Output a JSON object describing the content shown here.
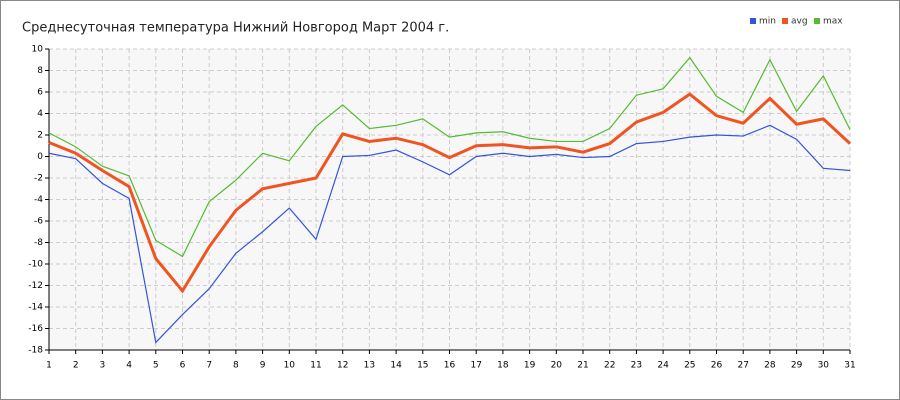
{
  "chart_data": {
    "type": "line",
    "title": "Среднесуточная температура Нижний Новгород  Март 2004 г.",
    "x": [
      1,
      2,
      3,
      4,
      5,
      6,
      7,
      8,
      9,
      10,
      11,
      12,
      13,
      14,
      15,
      16,
      17,
      18,
      19,
      20,
      21,
      22,
      23,
      24,
      25,
      26,
      27,
      28,
      29,
      30,
      31
    ],
    "xlim": [
      1,
      31
    ],
    "xticks": [
      1,
      2,
      3,
      4,
      5,
      6,
      7,
      8,
      9,
      10,
      11,
      12,
      13,
      14,
      15,
      16,
      17,
      18,
      19,
      20,
      21,
      22,
      23,
      24,
      25,
      26,
      27,
      28,
      29,
      30,
      31
    ],
    "ylim": [
      -18,
      10
    ],
    "yticks": [
      -18,
      -16,
      -14,
      -12,
      -10,
      -8,
      -6,
      -4,
      -2,
      0,
      2,
      4,
      6,
      8,
      10
    ],
    "grid": true,
    "legend": "top-right",
    "series": [
      {
        "name": "min",
        "color": "#3355dd",
        "values": [
          0.3,
          -0.2,
          -2.5,
          -3.9,
          -17.3,
          -14.7,
          -12.3,
          -9.0,
          -7.0,
          -4.8,
          -7.7,
          0.0,
          0.1,
          0.6,
          -0.5,
          -1.7,
          0.0,
          0.3,
          0.0,
          0.2,
          -0.1,
          0.0,
          1.2,
          1.4,
          1.8,
          2.0,
          1.9,
          2.9,
          1.6,
          -1.1,
          -1.3
        ]
      },
      {
        "name": "avg",
        "color": "#ee5522",
        "values": [
          1.3,
          0.3,
          -1.3,
          -2.8,
          -9.5,
          -12.5,
          -8.4,
          -5.0,
          -3.0,
          -2.5,
          -2.0,
          2.1,
          1.4,
          1.7,
          1.1,
          -0.1,
          1.0,
          1.1,
          0.8,
          0.9,
          0.4,
          1.2,
          3.2,
          4.1,
          5.8,
          3.8,
          3.1,
          5.4,
          3.0,
          3.5,
          1.2
        ]
      },
      {
        "name": "max",
        "color": "#55bb33",
        "values": [
          2.2,
          0.9,
          -0.9,
          -1.8,
          -7.8,
          -9.3,
          -4.2,
          -2.2,
          0.3,
          -0.4,
          2.8,
          4.8,
          2.6,
          2.9,
          3.5,
          1.8,
          2.2,
          2.3,
          1.7,
          1.4,
          1.4,
          2.6,
          5.7,
          6.3,
          9.2,
          5.6,
          4.1,
          9.0,
          4.2,
          7.5,
          2.5
        ]
      }
    ]
  }
}
